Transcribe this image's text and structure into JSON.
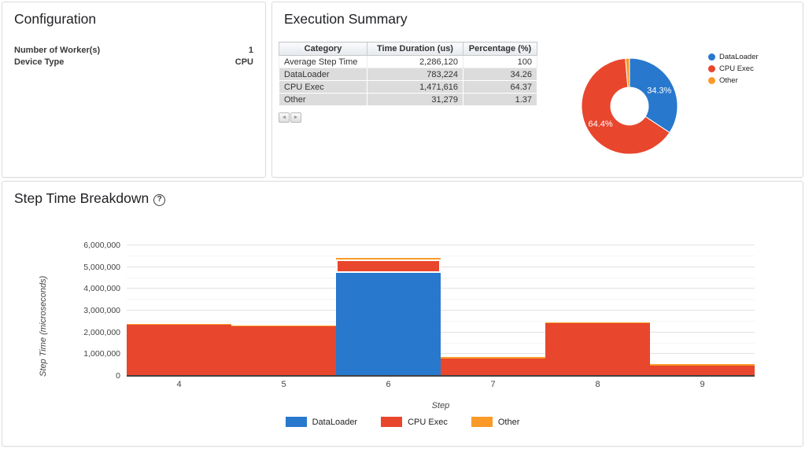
{
  "config": {
    "title": "Configuration",
    "rows": [
      {
        "label": "Number of Worker(s)",
        "value": "1"
      },
      {
        "label": "Device Type",
        "value": "CPU"
      }
    ]
  },
  "summary": {
    "title": "Execution Summary",
    "table": {
      "headers": [
        "Category",
        "Time Duration (us)",
        "Percentage (%)"
      ],
      "rows": [
        [
          "Average Step Time",
          "2,286,120",
          "100"
        ],
        [
          "DataLoader",
          "783,224",
          "34.26"
        ],
        [
          "CPU Exec",
          "1,471,616",
          "64.37"
        ],
        [
          "Other",
          "31,279",
          "1.37"
        ]
      ]
    },
    "pager": {
      "prev": "◄",
      "next": "►"
    }
  },
  "step_breakdown": {
    "title": "Step Time Breakdown",
    "help": "?"
  },
  "chart_data": [
    {
      "type": "pie",
      "donut": true,
      "legend_position": "right",
      "slices": [
        {
          "label": "DataLoader",
          "value": 34.26,
          "display": "34.3%",
          "color": "#2878CD"
        },
        {
          "label": "CPU Exec",
          "value": 64.37,
          "display": "64.4%",
          "color": "#E8462D"
        },
        {
          "label": "Other",
          "value": 1.37,
          "display": "",
          "color": "#FB9A28"
        }
      ]
    },
    {
      "type": "bar",
      "stacked": true,
      "categories": [
        4,
        5,
        6,
        7,
        8,
        9
      ],
      "series": [
        {
          "name": "DataLoader",
          "color": "#2878CD",
          "values": [
            0,
            0,
            4700000,
            0,
            0,
            0
          ]
        },
        {
          "name": "CPU Exec",
          "color": "#E8462D",
          "values": [
            2300000,
            2230000,
            630000,
            760000,
            2380000,
            440000
          ]
        },
        {
          "name": "Other",
          "color": "#FB9A28",
          "values": [
            35000,
            30000,
            35000,
            30000,
            30000,
            30000
          ]
        }
      ],
      "xlabel": "Step",
      "ylabel": "Step Time (microseconds)",
      "ylim": [
        0,
        6000000
      ],
      "ytick_interval": 1000000,
      "minor_interval": 500000,
      "grid": true,
      "legend_position": "bottom",
      "highlight": {
        "step": 6,
        "series": "CPU Exec"
      }
    }
  ]
}
